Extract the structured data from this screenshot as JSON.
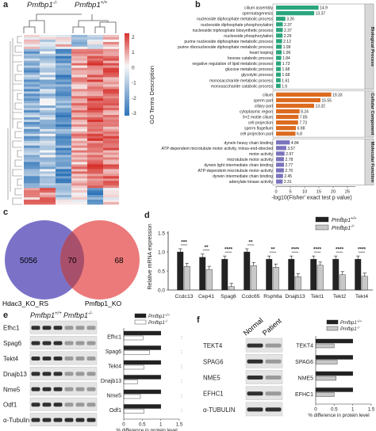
{
  "panels": {
    "a": {
      "label": "a",
      "genotype_ko": "Pmfbp1",
      "genotype_ko_sup": "-/-",
      "genotype_wt": "Pmfbp1",
      "genotype_wt_sup": "+/+",
      "scale_ticks": [
        "2",
        "1",
        "0",
        "-1",
        "-2",
        "-3"
      ],
      "colors": {
        "high": "#d7302b",
        "mid": "#f7f7f7",
        "low": "#2d73b8"
      }
    },
    "b": {
      "label": "b",
      "ylabel": "GO Terms Description",
      "xlabel": "-log10(Fisher' exact test p value)",
      "colors": {
        "bp": "#2aa57e",
        "cc": "#dc6b1f",
        "mf": "#7b74bd"
      }
    },
    "c": {
      "label": "c",
      "left_only": "5056",
      "overlap": "70",
      "right_only": "68",
      "left_name": "Hdac3_KO_RS",
      "right_name": "Pmfbp1_KO",
      "colors": {
        "left": "#7b72c8",
        "right": "#ec7a7a",
        "overlap": "#a84f6b"
      }
    },
    "d": {
      "label": "d",
      "legend": [
        {
          "name": "Pmfbp1",
          "sup": "+/+",
          "color": "#222222"
        },
        {
          "name": "Pmfbp1",
          "sup": "-/-",
          "color": "#c8c8c8"
        }
      ]
    },
    "e": {
      "label": "e",
      "genotype_wt": "Pmfbp1",
      "genotype_wt_sup": "+/+",
      "genotype_ko": "Pmfbp1",
      "genotype_ko_sup": "-/-",
      "blot_labels": [
        "Efhc1",
        "Spag6",
        "Tekt4",
        "Dnajb13",
        "Nme5",
        "Odf1",
        "α-Tubulin"
      ],
      "legend": [
        {
          "name": "Pmfbp1",
          "sup": "+/+"
        },
        {
          "name": "Pmfbp1",
          "sup": "-/-"
        }
      ]
    },
    "f": {
      "label": "f",
      "col_normal": "Normal",
      "col_patient": "Patient",
      "blot_labels": [
        "TEKT4",
        "SPAG6",
        "NME5",
        "EFHC1",
        "α-TUBULIN"
      ],
      "legend": [
        {
          "name": "Pmfbp1",
          "sup": "+/+"
        },
        {
          "name": "Pmfbp1",
          "sup": "-/-"
        }
      ]
    }
  },
  "chart_data": [
    {
      "id": "b",
      "type": "bar",
      "orientation": "horizontal",
      "xlabel": "-log10(Fisher' exact test p value)",
      "ylabel": "GO Terms Description",
      "xlim": [
        0,
        25
      ],
      "xticks": [
        "0",
        "5",
        "10",
        "15",
        "20",
        "25"
      ],
      "groups": [
        {
          "name": "Biological Process",
          "color": "#2aa57e",
          "categories": [
            "cilium assembly",
            "spermatogenesis",
            "nucleoside diphosphate metabolic process",
            "nucleoside diphosphate phosphorylation",
            "nucleoside triphosphate biosynthetic process",
            "nucleoside phosphorylation",
            "purine nucleoside diphosphate metabolic process",
            "purine ribonucleoside diphosphate metabolic process",
            "heart looping",
            "hexose catabolic process",
            "negative regulation of lipid metabolic process",
            "glucose metabolic process",
            "glycolytic process",
            "monosaccharide metabolic process",
            "monosaccharide catabolic process"
          ],
          "values": [
            14.9,
            13.37,
            3.26,
            2.37,
            2.37,
            2.29,
            2.12,
            1.99,
            1.96,
            1.84,
            1.73,
            1.68,
            1.68,
            1.61,
            1.6
          ],
          "value_labels": [
            "14.9",
            "13.37",
            "3.26",
            "2.37",
            "2.37",
            "2.29",
            "2.12",
            "1.99",
            "1.96",
            "1.84",
            "1.73",
            "1.68",
            "1.68",
            "1.61",
            "1.6"
          ]
        },
        {
          "name": "Cellular Component",
          "color": "#dc6b1f",
          "categories": [
            "cilium",
            "sperm part",
            "ciliary part",
            "cytoplasmic region",
            "9+2 motile cilium",
            "cell projection",
            "sperm flagellum",
            "cell projection part"
          ],
          "values": [
            19.33,
            15.55,
            13.32,
            8.24,
            7.85,
            7.73,
            6.98,
            6.8
          ],
          "value_labels": [
            "19.33",
            "15.55",
            "13.32",
            "8.24",
            "7.85",
            "7.73",
            "6.98",
            "6.8"
          ]
        },
        {
          "name": "Molecular Function",
          "color": "#7b74bd",
          "categories": [
            "dynein heavy chain binding",
            "ATP-dependent microtubule motor activity, minus-end-directed",
            "motor activity",
            "microtubule motor activity",
            "dynein light intermediate chain binding",
            "ATP-dependent microtubule motor activity",
            "dynein intermediate chain binding",
            "adenylate kinase activity"
          ],
          "values": [
            4.84,
            3.57,
            2.97,
            2.78,
            2.77,
            2.76,
            2.45,
            2.31
          ],
          "value_labels": [
            "4.84",
            "3.57",
            "2.97",
            "2.78",
            "2.77",
            "2.76",
            "2.45",
            "2.31"
          ]
        }
      ]
    },
    {
      "id": "d",
      "type": "bar",
      "ylabel": "Relative mRNA expression",
      "ylim": [
        0,
        1.5
      ],
      "yticks": [
        "0.0",
        "0.5",
        "1.0",
        "1.5"
      ],
      "categories": [
        "Ccdc13",
        "Cep41",
        "Spag6",
        "Ccdc65",
        "Rsph6a",
        "Dnajb13",
        "Tekt1",
        "Tekt2",
        "Tekt4"
      ],
      "significance": [
        "***",
        "**",
        "****",
        "**",
        "**",
        "****",
        "****",
        "****",
        "****"
      ],
      "series": [
        {
          "name": "Pmfbp1+/+",
          "color": "#222222",
          "values": [
            1.0,
            0.86,
            0.81,
            1.0,
            0.81,
            0.81,
            0.81,
            0.81,
            0.81
          ]
        },
        {
          "name": "Pmfbp1-/-",
          "color": "#c8c8c8",
          "values": [
            0.62,
            0.54,
            0.09,
            0.64,
            0.6,
            0.35,
            0.65,
            0.4,
            0.36
          ]
        }
      ]
    },
    {
      "id": "e",
      "type": "bar",
      "orientation": "horizontal",
      "xlabel": "% difference in protein level",
      "xlim": [
        0,
        1.5
      ],
      "xticks": [
        "0",
        "0.5",
        "1",
        "1.5"
      ],
      "categories": [
        "Efhc1",
        "Spag6",
        "Tekt4",
        "Dnajb13",
        "Nme5",
        "Odf1"
      ],
      "significance": [
        ":",
        ":",
        ":",
        ":",
        ":",
        ":"
      ],
      "series": [
        {
          "name": "Pmfbp1+/+",
          "color": "#222222",
          "values": [
            1.0,
            1.0,
            1.0,
            1.0,
            1.0,
            1.0
          ]
        },
        {
          "name": "Pmfbp1-/-",
          "color": "#ffffff",
          "values": [
            0.52,
            0.7,
            0.54,
            0.37,
            0.45,
            0.55
          ]
        }
      ]
    },
    {
      "id": "f",
      "type": "bar",
      "orientation": "horizontal",
      "xlabel": "% difference in protein level",
      "xlim": [
        0,
        1.5
      ],
      "xticks": [
        "0",
        "0.5",
        "1",
        "1.5"
      ],
      "categories": [
        "TEKT4",
        "SPAG6",
        "NME5",
        "EFHC1"
      ],
      "series": [
        {
          "name": "Pmfbp1+/+",
          "color": "#222222",
          "values": [
            1.0,
            1.0,
            1.0,
            1.0
          ]
        },
        {
          "name": "Pmfbp1-/-",
          "color": "#c8c8c8",
          "values": [
            0.5,
            0.58,
            0.55,
            0.5
          ]
        }
      ]
    }
  ]
}
